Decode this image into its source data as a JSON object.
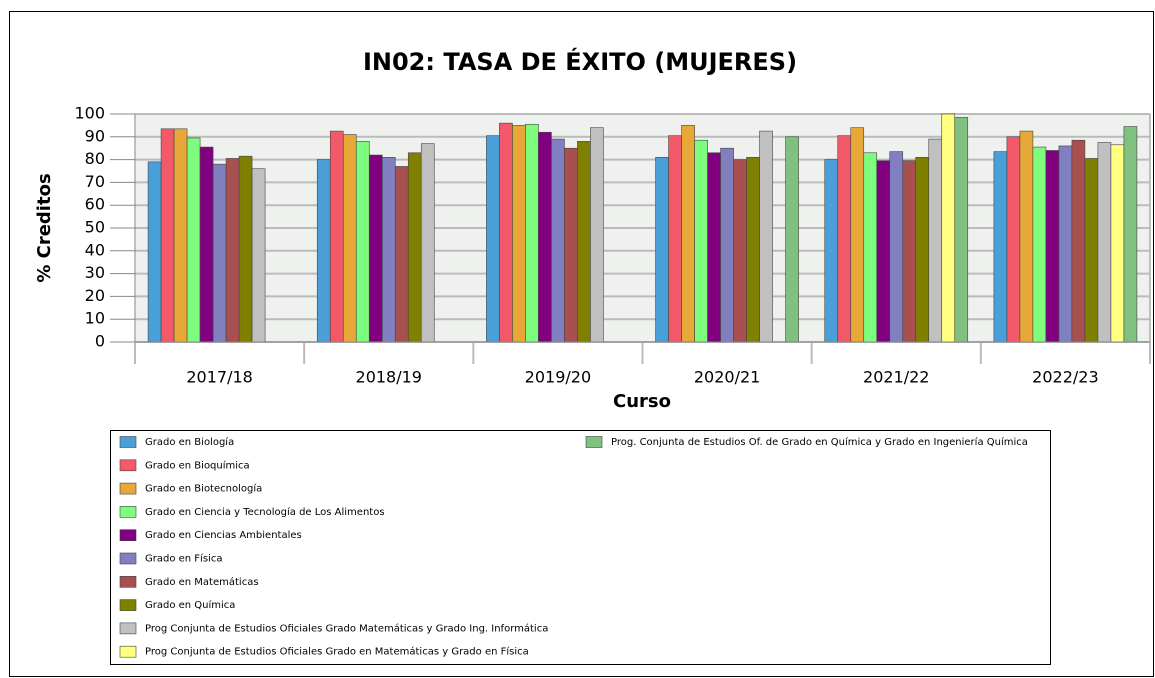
{
  "chart_data": {
    "type": "bar",
    "title": "IN02: TASA DE ÉXITO (MUJERES)",
    "x_label": "Curso",
    "y_label": "% Creditos",
    "categories": [
      "2017/18",
      "2018/19",
      "2019/20",
      "2020/21",
      "2021/22",
      "2022/23"
    ],
    "ylim": [
      0,
      100
    ],
    "yticks": [
      0,
      10,
      20,
      30,
      40,
      50,
      60,
      70,
      80,
      90,
      100
    ],
    "grid": true,
    "series": [
      {
        "name": "Grado en Biología",
        "color": "#4a9fd8",
        "values": [
          79,
          80,
          90.5,
          81,
          80,
          83.5
        ]
      },
      {
        "name": "Grado en Bioquímica",
        "color": "#f25a6a",
        "values": [
          93.5,
          92.5,
          96,
          90.5,
          90.5,
          90
        ]
      },
      {
        "name": "Grado en Biotecnología",
        "color": "#e8a838",
        "values": [
          93.5,
          91,
          95,
          95,
          94,
          92.5
        ]
      },
      {
        "name": "Grado en Ciencia y Tecnología de Los Alimentos",
        "color": "#7dfc7d",
        "values": [
          89.5,
          88,
          95.5,
          88.5,
          83,
          85.5
        ]
      },
      {
        "name": "Grado en Ciencias Ambientales",
        "color": "#800080",
        "values": [
          85.5,
          82,
          92,
          83,
          79.5,
          84
        ]
      },
      {
        "name": "Grado en Física",
        "color": "#8080c0",
        "values": [
          78,
          81,
          89,
          85,
          83.5,
          86
        ]
      },
      {
        "name": "Grado en Matemáticas",
        "color": "#a85050",
        "values": [
          80.5,
          77,
          85,
          80,
          79.5,
          88.5
        ]
      },
      {
        "name": "Grado en Química",
        "color": "#808000",
        "values": [
          81.5,
          83,
          88,
          81,
          81,
          80.5
        ]
      },
      {
        "name": "Prog Conjunta de Estudios Oficiales Grado Matemáticas y Grado Ing. Informática",
        "color": "#c0c0c0",
        "values": [
          76,
          87,
          94,
          92.5,
          89,
          87.5
        ]
      },
      {
        "name": "Prog Conjunta de Estudios Oficiales Grado en Matemáticas y Grado en Física",
        "color": "#ffff80",
        "values": [
          null,
          null,
          null,
          null,
          100,
          86.5
        ]
      },
      {
        "name": "Prog. Conjunta de Estudios Of. de Grado en Química y Grado en Ingeniería Química",
        "color": "#80c080",
        "values": [
          null,
          null,
          null,
          90,
          98.5,
          94.5
        ]
      }
    ]
  }
}
